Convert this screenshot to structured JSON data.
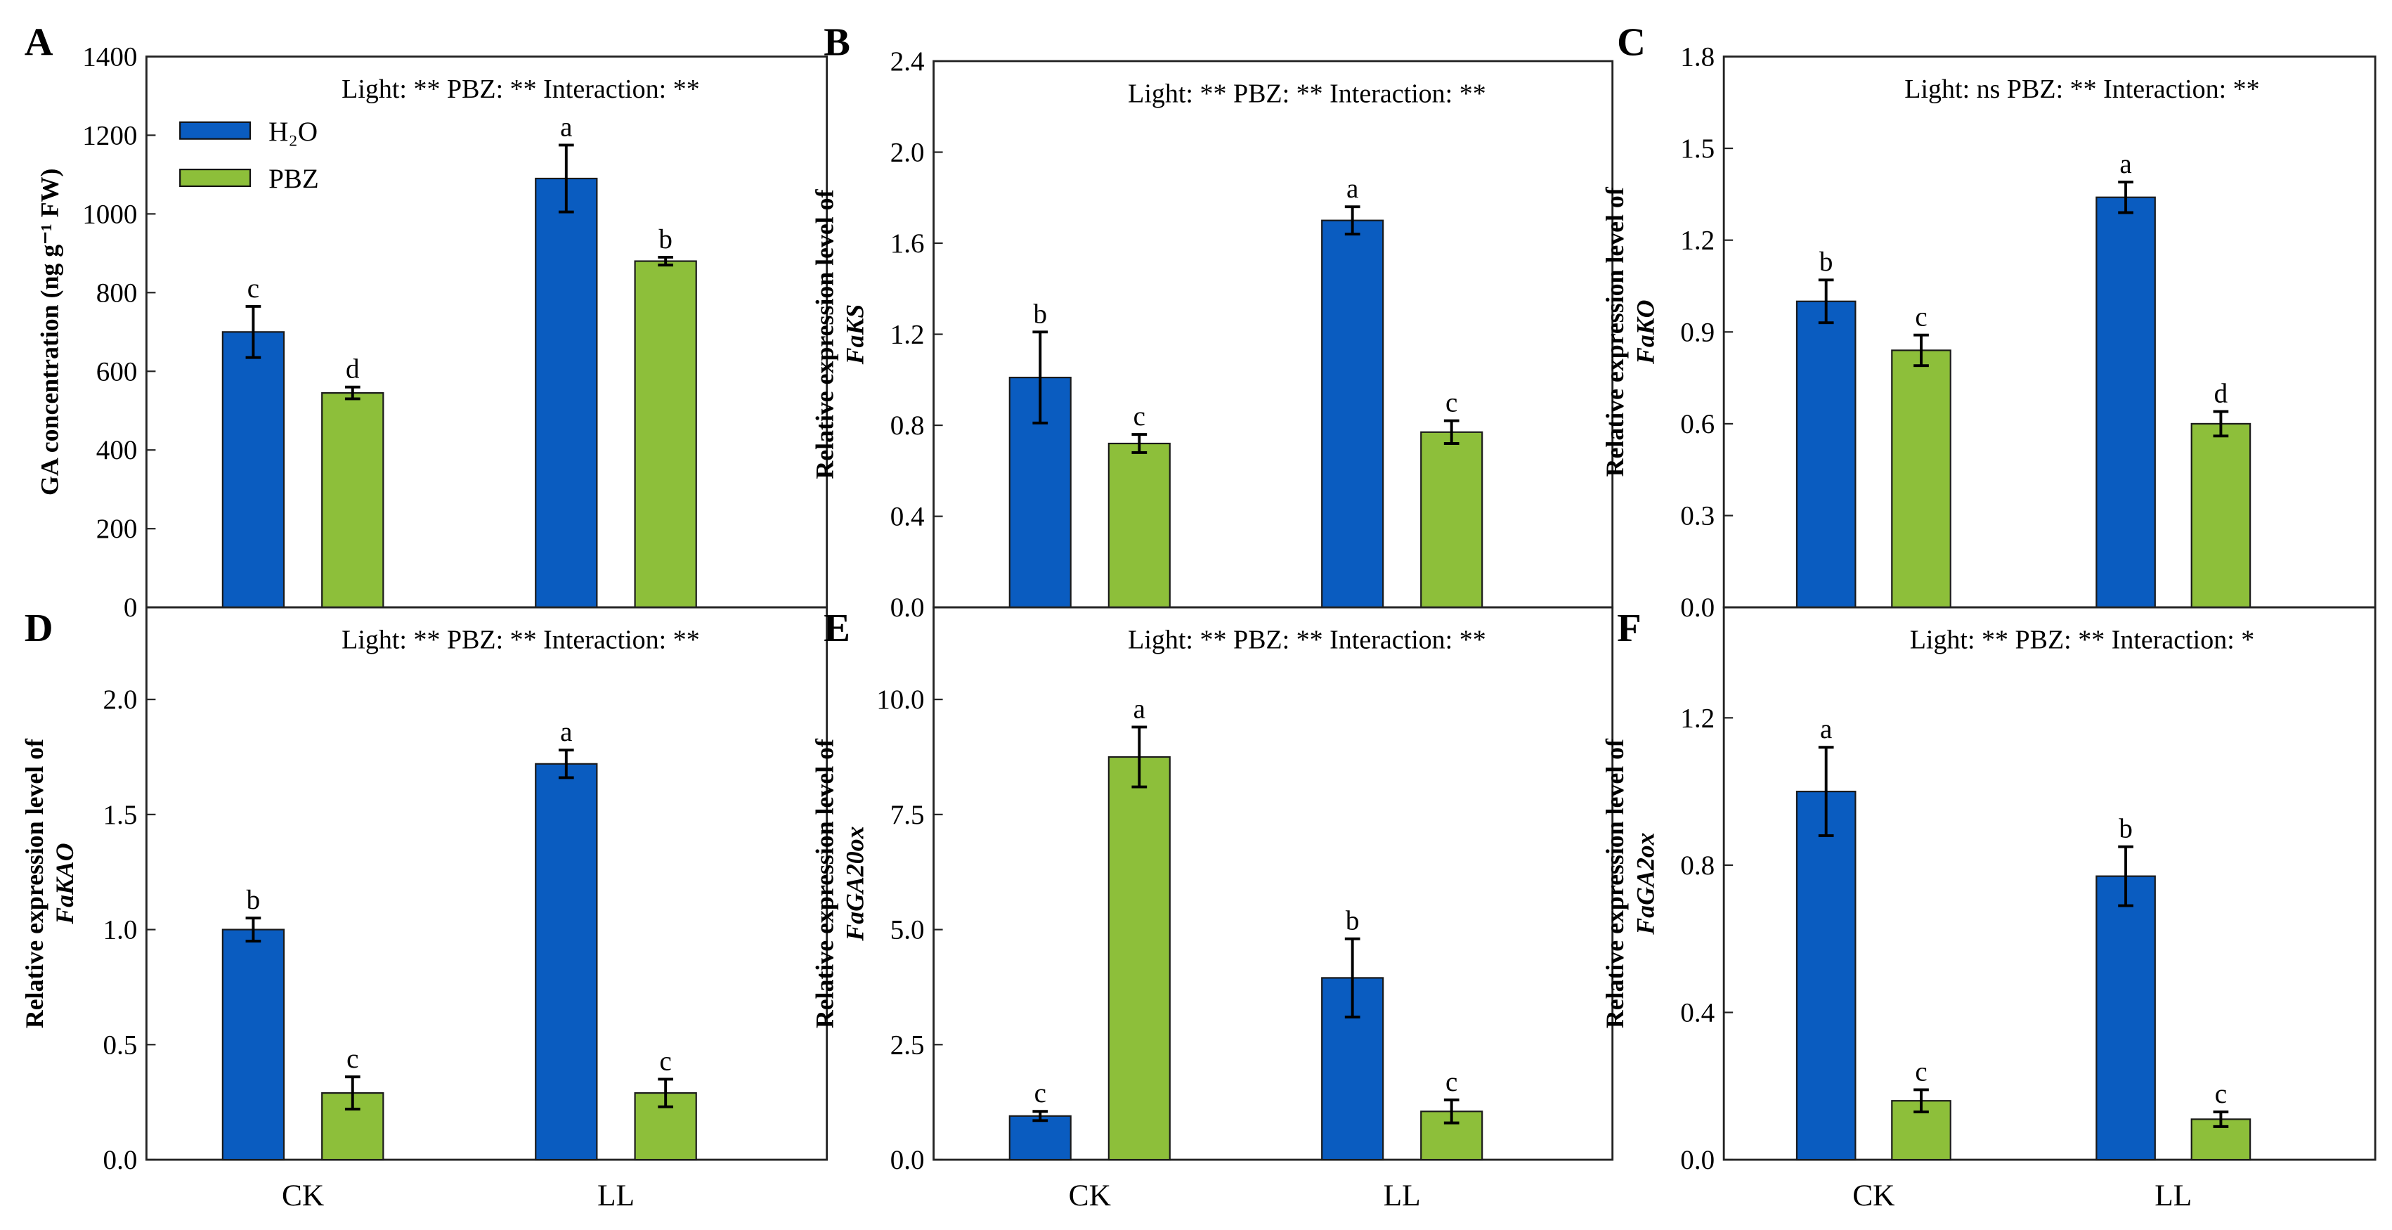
{
  "colors": {
    "h2o": "#0a5cc0",
    "pbz": "#8dbf3a",
    "frame": "#222222"
  },
  "legend": [
    {
      "name": "H₂O",
      "color_key": "h2o"
    },
    {
      "name": "PBZ",
      "color_key": "pbz"
    }
  ],
  "chart_data": [
    {
      "panel": "A",
      "type": "bar",
      "categories": [
        "CK",
        "LL"
      ],
      "series": [
        {
          "name": "H₂O",
          "values": [
            700,
            1090
          ],
          "errors": [
            65,
            85
          ],
          "letters": [
            "c",
            "a"
          ]
        },
        {
          "name": "PBZ",
          "values": [
            545,
            880
          ],
          "errors": [
            15,
            10
          ],
          "letters": [
            "d",
            "b"
          ]
        }
      ],
      "annotation": "Light: ** PBZ: ** Interaction: **",
      "ylabel": "GA concentration (ng g⁻¹ FW)",
      "ylabel_gene": "",
      "ylim": [
        0,
        1400
      ],
      "yticks": [
        "0",
        "200",
        "400",
        "600",
        "800",
        "1000",
        "1200",
        "1400"
      ],
      "ytick_values": [
        0,
        200,
        400,
        600,
        800,
        1000,
        1200,
        1400
      ],
      "legend": "top-left"
    },
    {
      "panel": "B",
      "type": "bar",
      "categories": [
        "CK",
        "LL"
      ],
      "series": [
        {
          "name": "H₂O",
          "values": [
            1.01,
            1.7
          ],
          "errors": [
            0.2,
            0.06
          ],
          "letters": [
            "b",
            "a"
          ]
        },
        {
          "name": "PBZ",
          "values": [
            0.72,
            0.77
          ],
          "errors": [
            0.04,
            0.05
          ],
          "letters": [
            "c",
            "c"
          ]
        }
      ],
      "annotation": "Light: ** PBZ: ** Interaction: **",
      "ylabel": "Relative expression level of",
      "ylabel_gene": "FaKS",
      "ylim": [
        0,
        2.4
      ],
      "yticks": [
        "0.0",
        "0.4",
        "0.8",
        "1.2",
        "1.6",
        "2.0",
        "2.4"
      ],
      "ytick_values": [
        0,
        0.4,
        0.8,
        1.2,
        1.6,
        2.0,
        2.4
      ]
    },
    {
      "panel": "C",
      "type": "bar",
      "categories": [
        "CK",
        "LL"
      ],
      "series": [
        {
          "name": "H₂O",
          "values": [
            1.0,
            1.34
          ],
          "errors": [
            0.07,
            0.05
          ],
          "letters": [
            "b",
            "a"
          ]
        },
        {
          "name": "PBZ",
          "values": [
            0.84,
            0.6
          ],
          "errors": [
            0.05,
            0.04
          ],
          "letters": [
            "c",
            "d"
          ]
        }
      ],
      "annotation": "Light: ns PBZ: ** Interaction: **",
      "ylabel": "Relative expression level of",
      "ylabel_gene": "FaKO",
      "ylim": [
        0,
        1.8
      ],
      "yticks": [
        "0.0",
        "0.3",
        "0.6",
        "0.9",
        "1.2",
        "1.5",
        "1.8"
      ],
      "ytick_values": [
        0,
        0.3,
        0.6,
        0.9,
        1.2,
        1.5,
        1.8
      ]
    },
    {
      "panel": "D",
      "type": "bar",
      "categories": [
        "CK",
        "LL"
      ],
      "series": [
        {
          "name": "H₂O",
          "values": [
            1.0,
            1.72
          ],
          "errors": [
            0.05,
            0.06
          ],
          "letters": [
            "b",
            "a"
          ]
        },
        {
          "name": "PBZ",
          "values": [
            0.29,
            0.29
          ],
          "errors": [
            0.07,
            0.06
          ],
          "letters": [
            "c",
            "c"
          ]
        }
      ],
      "annotation": "Light: ** PBZ: ** Interaction: **",
      "ylabel": "Relative expression level of",
      "ylabel_gene": "FaKAO",
      "ylim": [
        0,
        2.4
      ],
      "yticks": [
        "0.0",
        "0.5",
        "1.0",
        "1.5",
        "2.0"
      ],
      "ytick_values": [
        0,
        0.5,
        1.0,
        1.5,
        2.0
      ]
    },
    {
      "panel": "E",
      "type": "bar",
      "categories": [
        "CK",
        "LL"
      ],
      "series": [
        {
          "name": "H₂O",
          "values": [
            0.95,
            3.95
          ],
          "errors": [
            0.1,
            0.85
          ],
          "letters": [
            "c",
            "b"
          ]
        },
        {
          "name": "PBZ",
          "values": [
            8.75,
            1.05
          ],
          "errors": [
            0.65,
            0.25
          ],
          "letters": [
            "a",
            "c"
          ]
        }
      ],
      "annotation": "Light: ** PBZ: ** Interaction: **",
      "ylabel": "Relative expression level of",
      "ylabel_gene": "FaGA20ox",
      "ylim": [
        0,
        12
      ],
      "yticks": [
        "0.0",
        "2.5",
        "5.0",
        "7.5",
        "10.0"
      ],
      "ytick_values": [
        0,
        2.5,
        5.0,
        7.5,
        10.0
      ]
    },
    {
      "panel": "F",
      "type": "bar",
      "categories": [
        "CK",
        "LL"
      ],
      "series": [
        {
          "name": "H₂O",
          "values": [
            1.0,
            0.77
          ],
          "errors": [
            0.12,
            0.08
          ],
          "letters": [
            "a",
            "b"
          ]
        },
        {
          "name": "PBZ",
          "values": [
            0.16,
            0.11
          ],
          "errors": [
            0.03,
            0.02
          ],
          "letters": [
            "c",
            "c"
          ]
        }
      ],
      "annotation": "Light: ** PBZ: ** Interaction: *",
      "ylabel": "Relative expression level of",
      "ylabel_gene": "FaGA2ox",
      "ylim": [
        0,
        1.5
      ],
      "yticks": [
        "0.0",
        "0.4",
        "0.8",
        "1.2"
      ],
      "ytick_values": [
        0,
        0.4,
        0.8,
        1.2
      ]
    }
  ]
}
